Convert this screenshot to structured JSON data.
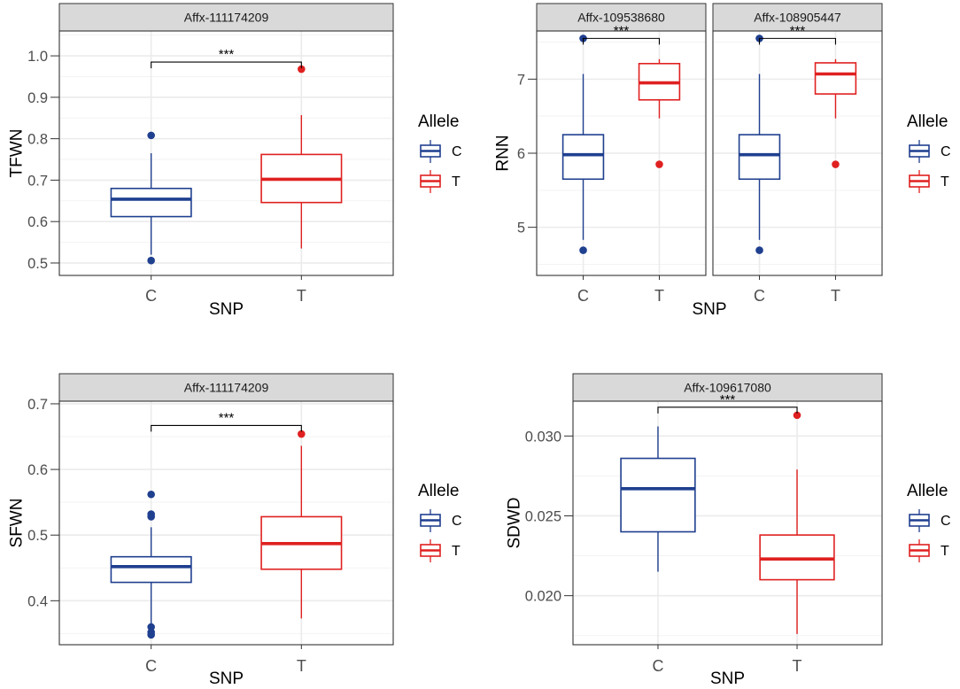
{
  "colors": {
    "C": "#1f3f8f",
    "T": "#e02020",
    "grid": "#ebebeb",
    "strip": "#d9d9d9",
    "frame": "#333333"
  },
  "chart_data": [
    {
      "type": "boxplot",
      "ylabel": "TFWN",
      "xlabel": "SNP",
      "categories": [
        "C",
        "T"
      ],
      "ylim": [
        0.47,
        1.06
      ],
      "yticks": [
        0.5,
        0.6,
        0.7,
        0.8,
        0.9,
        1.0
      ],
      "ytick_labels": [
        "0.5",
        "0.6",
        "0.7",
        "0.8",
        "0.9",
        "1.0"
      ],
      "legend": {
        "title": "Allele",
        "items": [
          "C",
          "T"
        ]
      },
      "panels": [
        {
          "strip": "Affx-111174209",
          "significance": "***",
          "sig_y": 0.985,
          "boxes": [
            {
              "group": "C",
              "whisker_low": 0.52,
              "q1": 0.612,
              "median": 0.654,
              "q3": 0.68,
              "whisker_high": 0.765,
              "outliers": [
                0.808,
                0.506
              ]
            },
            {
              "group": "T",
              "whisker_low": 0.535,
              "q1": 0.646,
              "median": 0.702,
              "q3": 0.762,
              "whisker_high": 0.857,
              "outliers": [
                0.968
              ]
            }
          ]
        }
      ]
    },
    {
      "type": "boxplot",
      "ylabel": "RNN",
      "xlabel": "SNP",
      "categories": [
        "C",
        "T"
      ],
      "ylim": [
        4.35,
        7.65
      ],
      "yticks": [
        5,
        6,
        7
      ],
      "ytick_labels": [
        "5",
        "6",
        "7"
      ],
      "legend": {
        "title": "Allele",
        "items": [
          "C",
          "T"
        ]
      },
      "panels": [
        {
          "strip": "Affx-109538680",
          "significance": "***",
          "sig_y": 7.55,
          "boxes": [
            {
              "group": "C",
              "whisker_low": 4.83,
              "q1": 5.65,
              "median": 5.98,
              "q3": 6.25,
              "whisker_high": 7.07,
              "outliers": [
                7.55,
                4.69
              ]
            },
            {
              "group": "T",
              "whisker_low": 6.47,
              "q1": 6.72,
              "median": 6.95,
              "q3": 7.21,
              "whisker_high": 7.27,
              "outliers": [
                5.85
              ]
            }
          ]
        },
        {
          "strip": "Affx-108905447",
          "significance": "***",
          "sig_y": 7.55,
          "boxes": [
            {
              "group": "C",
              "whisker_low": 4.83,
              "q1": 5.65,
              "median": 5.98,
              "q3": 6.25,
              "whisker_high": 7.07,
              "outliers": [
                7.55,
                4.69
              ]
            },
            {
              "group": "T",
              "whisker_low": 6.47,
              "q1": 6.8,
              "median": 7.07,
              "q3": 7.22,
              "whisker_high": 7.27,
              "outliers": [
                5.85
              ]
            }
          ]
        }
      ]
    },
    {
      "type": "boxplot",
      "ylabel": "SFWN",
      "xlabel": "SNP",
      "categories": [
        "C",
        "T"
      ],
      "ylim": [
        0.333,
        0.704
      ],
      "yticks": [
        0.4,
        0.5,
        0.6,
        0.7
      ],
      "ytick_labels": [
        "0.4",
        "0.5",
        "0.6",
        "0.7"
      ],
      "legend": {
        "title": "Allele",
        "items": [
          "C",
          "T"
        ]
      },
      "panels": [
        {
          "strip": "Affx-111174209",
          "significance": "***",
          "sig_y": 0.667,
          "boxes": [
            {
              "group": "C",
              "whisker_low": 0.365,
              "q1": 0.428,
              "median": 0.452,
              "q3": 0.467,
              "whisker_high": 0.512,
              "outliers": [
                0.562,
                0.532,
                0.528,
                0.36,
                0.352,
                0.348
              ]
            },
            {
              "group": "T",
              "whisker_low": 0.373,
              "q1": 0.448,
              "median": 0.487,
              "q3": 0.528,
              "whisker_high": 0.636,
              "outliers": [
                0.654
              ]
            }
          ]
        }
      ]
    },
    {
      "type": "boxplot",
      "ylabel": "SDWD",
      "xlabel": "SNP",
      "categories": [
        "C",
        "T"
      ],
      "ylim": [
        0.01693,
        0.03218
      ],
      "yticks": [
        0.02,
        0.025,
        0.03
      ],
      "ytick_labels": [
        "0.020",
        "0.025",
        "0.030"
      ],
      "legend": {
        "title": "Allele",
        "items": [
          "C",
          "T"
        ]
      },
      "panels": [
        {
          "strip": "Affx-109617080",
          "significance": "***",
          "sig_y": 0.0318,
          "boxes": [
            {
              "group": "C",
              "whisker_low": 0.0215,
              "q1": 0.024,
              "median": 0.0267,
              "q3": 0.0286,
              "whisker_high": 0.0306,
              "outliers": []
            },
            {
              "group": "T",
              "whisker_low": 0.0176,
              "q1": 0.021,
              "median": 0.0223,
              "q3": 0.0238,
              "whisker_high": 0.0279,
              "outliers": [
                0.0313
              ]
            }
          ]
        }
      ]
    }
  ]
}
